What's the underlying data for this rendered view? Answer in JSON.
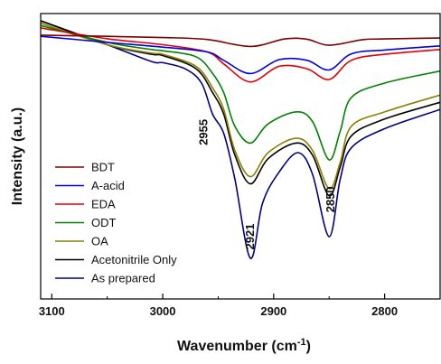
{
  "chart_data": {
    "type": "line",
    "title": "",
    "xlabel": "Wavenumber (cm",
    "xlabel_sup": "-1",
    "xlabel_end": ")",
    "ylabel": "Intensity (a.u.)",
    "xlim": [
      3110,
      2750
    ],
    "ylim": [
      -10,
      109
    ],
    "x_reversed": true,
    "grid": false,
    "legend_position": "left",
    "xticks": [
      3100,
      3000,
      2900,
      2800
    ],
    "xtick_labels": [
      "3100",
      "3000",
      "2900",
      "2800"
    ],
    "annotations": [
      {
        "text": "2955",
        "x": 2955,
        "y": 58,
        "rotate": -90
      },
      {
        "text": "2921",
        "x": 2921,
        "y": 19,
        "rotate": -90
      },
      {
        "text": "2850",
        "x": 2850,
        "y": 33,
        "rotate": -90
      }
    ],
    "series": [
      {
        "name": "BDT",
        "color": "#7b0000",
        "x": [
          3110,
          3050,
          3000,
          2960,
          2921,
          2890,
          2870,
          2850,
          2820,
          2800,
          2750
        ],
        "y": [
          100,
          99.5,
          99,
          98.2,
          95.3,
          98.4,
          98.3,
          95.8,
          98.1,
          98.4,
          98.8
        ]
      },
      {
        "name": "A-acid",
        "color": "#0000e0",
        "x": [
          3110,
          3050,
          3000,
          2960,
          2945,
          2921,
          2895,
          2870,
          2850,
          2830,
          2800,
          2750
        ],
        "y": [
          99.5,
          97,
          95,
          93,
          89.5,
          84,
          89.8,
          89.5,
          85.5,
          92.2,
          93.8,
          95.5
        ]
      },
      {
        "name": "EDA",
        "color": "#e00000",
        "x": [
          3110,
          3050,
          3000,
          2960,
          2945,
          2921,
          2895,
          2870,
          2850,
          2830,
          2800,
          2750
        ],
        "y": [
          103,
          98.5,
          96,
          93,
          88,
          80.5,
          87,
          86,
          81.5,
          89.5,
          92,
          94
        ]
      },
      {
        "name": "ODT",
        "color": "#008000",
        "x": [
          3110,
          3050,
          3010,
          3000,
          2970,
          2955,
          2945,
          2935,
          2921,
          2905,
          2880,
          2865,
          2850,
          2840,
          2830,
          2800,
          2750
        ],
        "y": [
          104,
          97,
          94,
          93.5,
          91,
          84,
          76,
          62,
          55,
          63,
          68,
          64,
          48,
          60,
          74,
          80,
          85
        ]
      },
      {
        "name": "OA",
        "color": "#8b8000",
        "x": [
          3110,
          3050,
          3010,
          3000,
          2970,
          2955,
          2945,
          2935,
          2921,
          2905,
          2880,
          2865,
          2850,
          2840,
          2830,
          2800,
          2750
        ],
        "y": [
          105,
          96,
          92.5,
          92,
          87,
          78,
          69,
          52,
          41,
          51,
          57,
          52,
          36,
          47,
          62,
          68,
          75
        ]
      },
      {
        "name": "Acetonitrile Only",
        "color": "#000000",
        "x": [
          3110,
          3050,
          3010,
          3000,
          2970,
          2955,
          2945,
          2935,
          2921,
          2905,
          2880,
          2865,
          2850,
          2840,
          2830,
          2800,
          2750
        ],
        "y": [
          106,
          96,
          92,
          91.5,
          86,
          76,
          67,
          50,
          38,
          48.5,
          55,
          50,
          33,
          45,
          58,
          65,
          72
        ]
      },
      {
        "name": "As prepared",
        "color": "#000080",
        "x": [
          3110,
          3050,
          3010,
          3000,
          2980,
          2965,
          2955,
          2945,
          2935,
          2921,
          2910,
          2895,
          2878,
          2865,
          2850,
          2840,
          2830,
          2800,
          2750
        ],
        "y": [
          106,
          96,
          89,
          88.5,
          86,
          80,
          67,
          59,
          40,
          7,
          30,
          43,
          51,
          42,
          16,
          40,
          53,
          61,
          69
        ]
      }
    ]
  }
}
